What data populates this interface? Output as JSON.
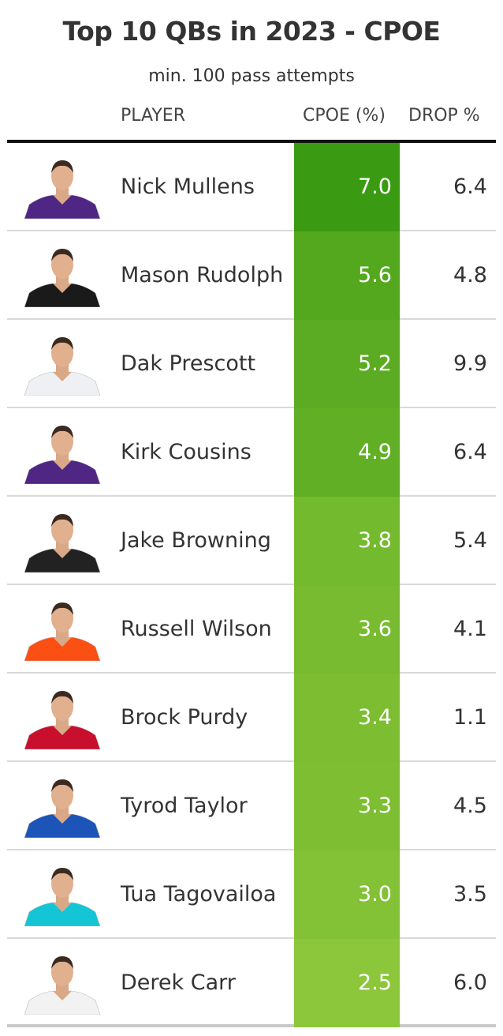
{
  "header": {
    "title": "Top 10 QBs in 2023 - CPOE",
    "subtitle": "min. 100 pass attempts",
    "columns": {
      "player": "PLAYER",
      "cpoe": "CPOE (%)",
      "drop": "DROP %"
    }
  },
  "colors": {
    "cpoe_high": "#3a9b12",
    "cpoe_low": "#8cc63a"
  },
  "chart_data": {
    "type": "table",
    "title": "Top 10 QBs in 2023 - CPOE",
    "subtitle": "min. 100 pass attempts",
    "columns": [
      "PLAYER",
      "CPOE (%)",
      "DROP %"
    ],
    "rows": [
      {
        "player": "Nick Mullens",
        "cpoe": "7.0",
        "drop": "6.4",
        "jersey": "#4f2683",
        "icon": "player-headshot"
      },
      {
        "player": "Mason Rudolph",
        "cpoe": "5.6",
        "drop": "4.8",
        "jersey": "#1a1a1a",
        "icon": "player-headshot"
      },
      {
        "player": "Dak Prescott",
        "cpoe": "5.2",
        "drop": "9.9",
        "jersey": "#eef0f4",
        "icon": "player-headshot"
      },
      {
        "player": "Kirk Cousins",
        "cpoe": "4.9",
        "drop": "6.4",
        "jersey": "#4f2683",
        "icon": "player-headshot"
      },
      {
        "player": "Jake Browning",
        "cpoe": "3.8",
        "drop": "5.4",
        "jersey": "#222222",
        "icon": "player-headshot"
      },
      {
        "player": "Russell Wilson",
        "cpoe": "3.6",
        "drop": "4.1",
        "jersey": "#fb4f14",
        "icon": "player-headshot"
      },
      {
        "player": "Brock Purdy",
        "cpoe": "3.4",
        "drop": "1.1",
        "jersey": "#c8102e",
        "icon": "player-headshot"
      },
      {
        "player": "Tyrod Taylor",
        "cpoe": "3.3",
        "drop": "4.5",
        "jersey": "#1c54b8",
        "icon": "player-headshot"
      },
      {
        "player": "Tua Tagovailoa",
        "cpoe": "3.0",
        "drop": "3.5",
        "jersey": "#14c5d6",
        "icon": "player-headshot"
      },
      {
        "player": "Derek Carr",
        "cpoe": "2.5",
        "drop": "6.0",
        "jersey": "#f2f2f2",
        "icon": "player-headshot"
      }
    ]
  }
}
